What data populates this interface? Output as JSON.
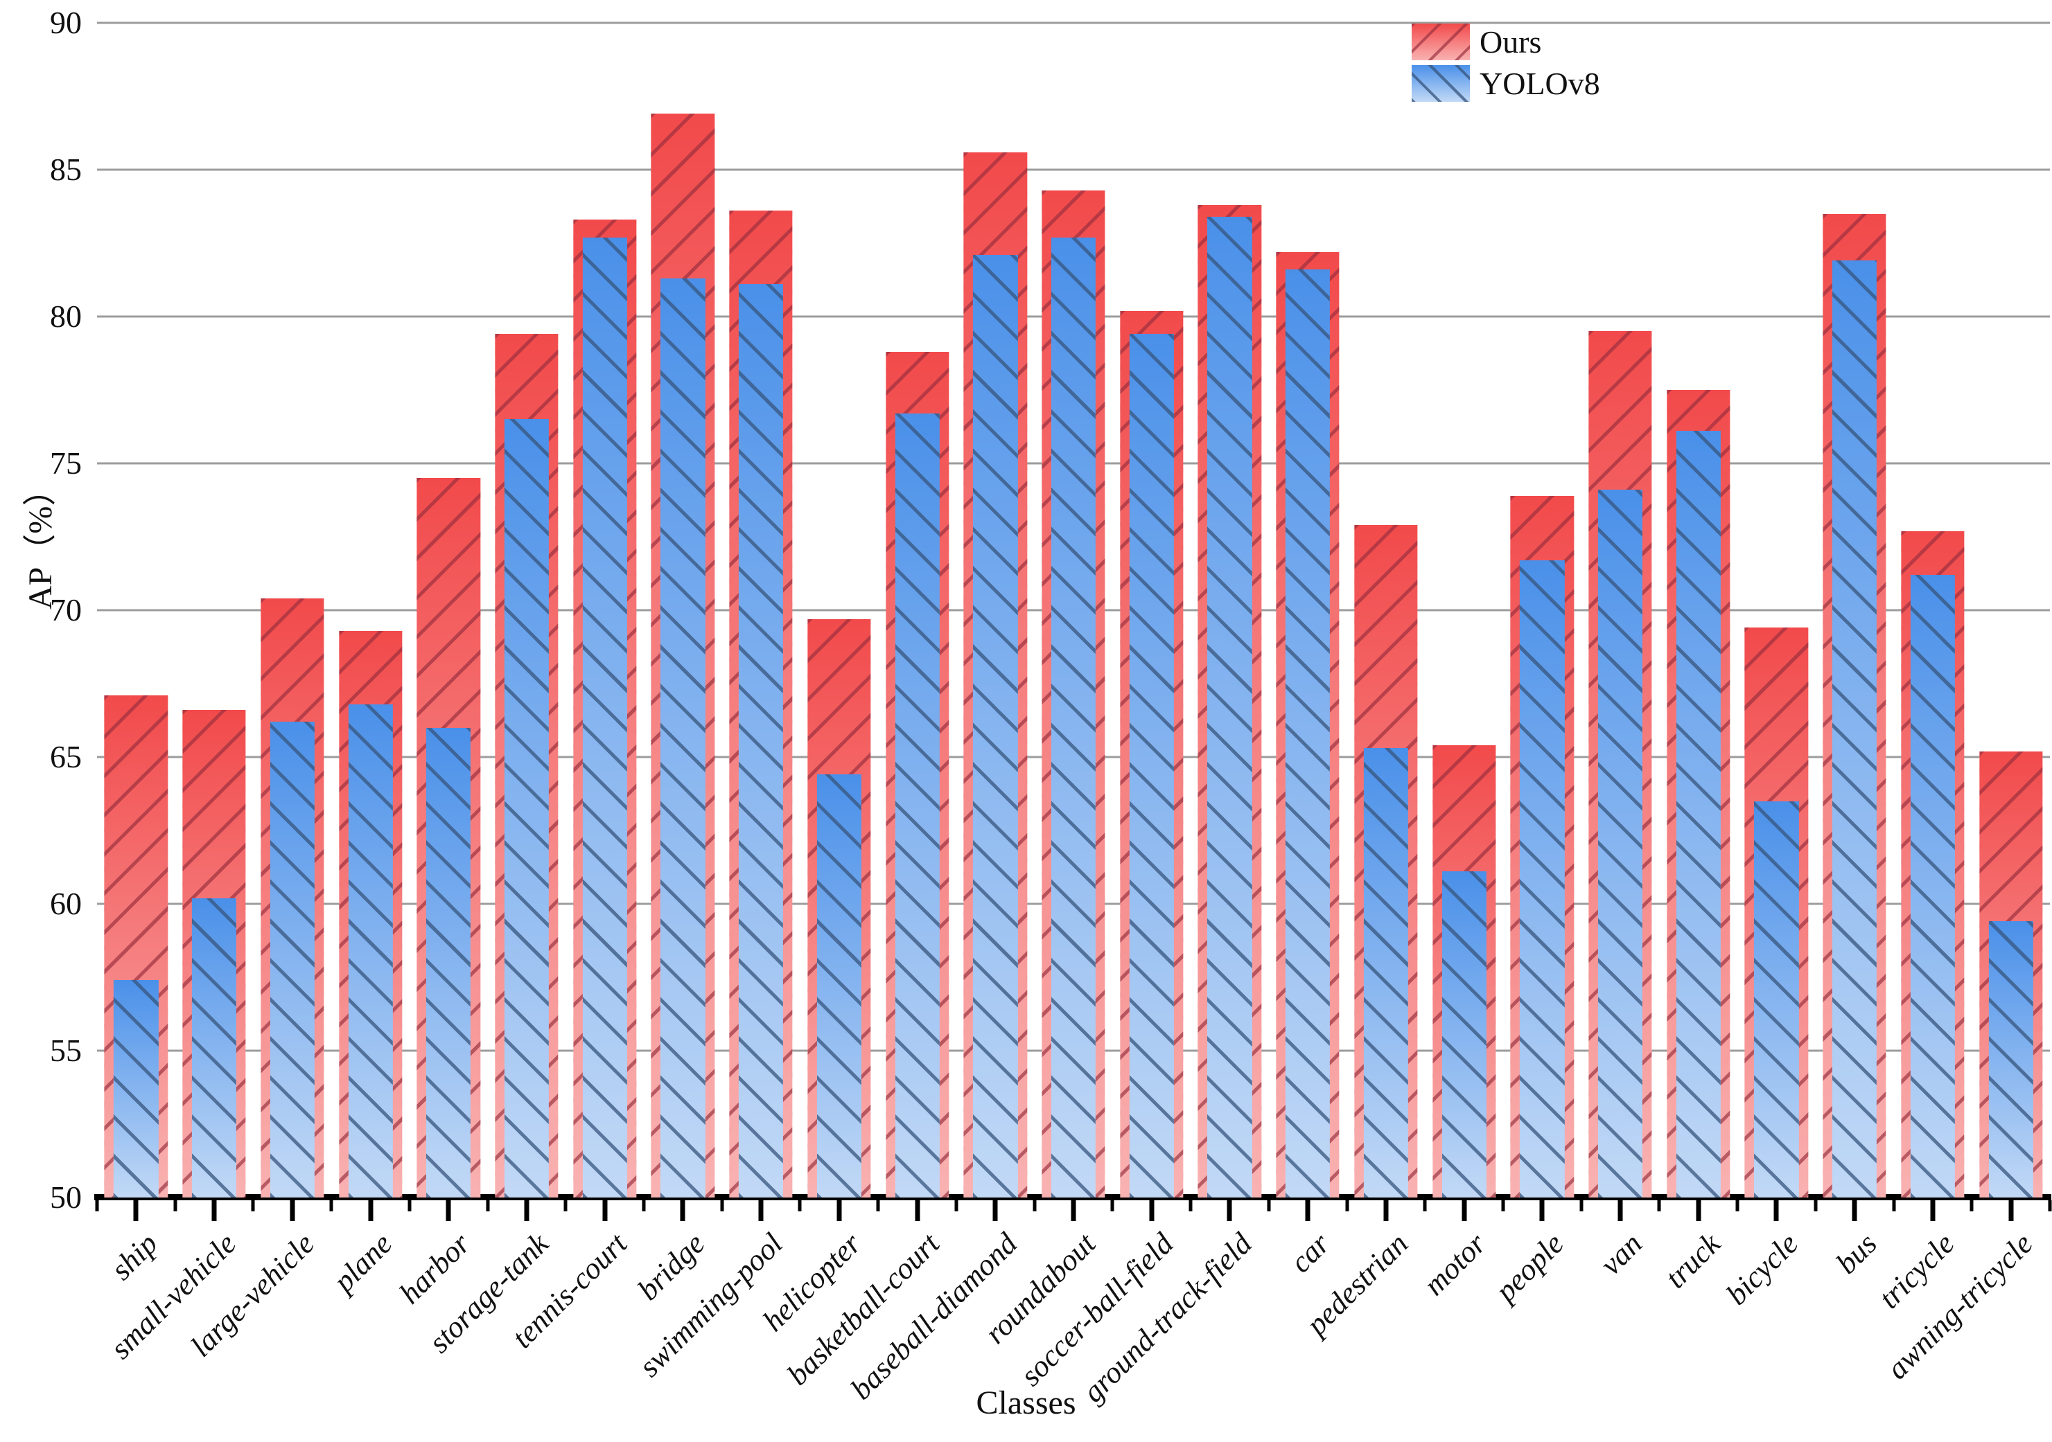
{
  "axes": {
    "y_label": "AP（%）",
    "x_label": "Classes"
  },
  "legend": {
    "items": [
      {
        "label": "Ours",
        "series": "ours"
      },
      {
        "label": "YOLOv8",
        "series": "yolov8"
      }
    ]
  },
  "chart_data": {
    "type": "bar",
    "title": "",
    "xlabel": "Classes",
    "ylabel": "AP（%）",
    "ylim": [
      50,
      90
    ],
    "y_ticks": [
      50,
      55,
      60,
      65,
      70,
      75,
      80,
      85,
      90
    ],
    "grid": "horizontal",
    "legend_position": "top-right",
    "categories": [
      "ship",
      "small-vehicle",
      "large-vehicle",
      "plane",
      "harbor",
      "storage-tank",
      "tennis-court",
      "bridge",
      "swimming-pool",
      "helicopter",
      "basketball-court",
      "baseball-diamond",
      "roundabout",
      "soccer-ball-field",
      "ground-track-field",
      "car",
      "pedestrian",
      "motor",
      "people",
      "van",
      "truck",
      "bicycle",
      "bus",
      "tricycle",
      "awning-tricycle"
    ],
    "series": [
      {
        "name": "Ours",
        "values": [
          67.1,
          66.6,
          70.4,
          69.3,
          74.5,
          79.4,
          83.3,
          86.9,
          83.6,
          69.7,
          78.8,
          85.6,
          84.3,
          80.2,
          83.8,
          82.2,
          72.9,
          65.4,
          73.9,
          79.5,
          77.5,
          69.4,
          83.5,
          72.7,
          65.2
        ]
      },
      {
        "name": "YOLOv8",
        "values": [
          57.4,
          60.2,
          66.2,
          66.8,
          66.0,
          76.5,
          82.7,
          81.3,
          81.1,
          64.4,
          76.7,
          82.1,
          82.7,
          79.4,
          83.4,
          81.6,
          65.3,
          61.1,
          71.7,
          74.1,
          76.1,
          63.5,
          81.9,
          71.2,
          59.4
        ]
      }
    ]
  },
  "colors": {
    "ours_top": "#f24a4b",
    "ours_bottom": "#f9b2b2",
    "ours_hatch": "rgba(150,45,60,0.65)",
    "yolov8_top": "#4a90e9",
    "yolov8_bottom": "#c2d9f6",
    "yolov8_hatch": "rgba(55,85,125,0.75)",
    "gridline": "#9c9c9c",
    "axis": "#000000",
    "text": "#111111"
  }
}
